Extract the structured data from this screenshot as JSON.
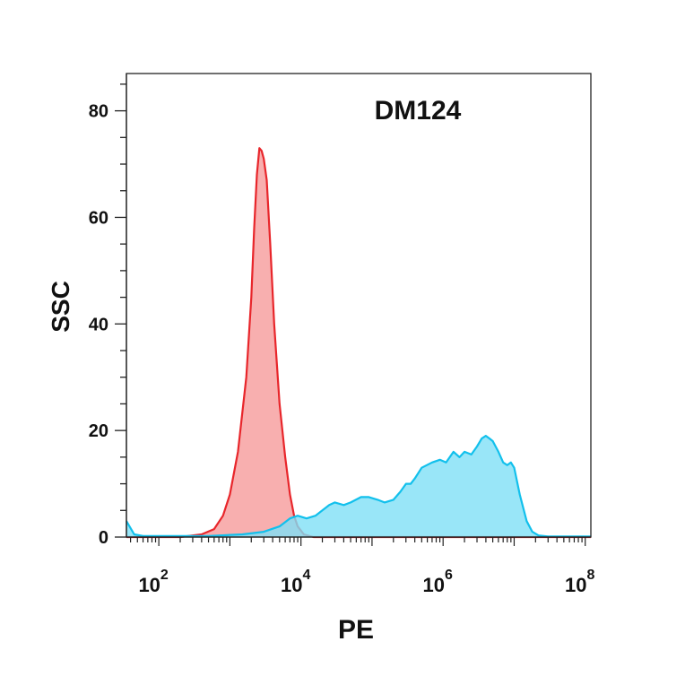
{
  "chart_data": {
    "type": "area",
    "title": "DM124",
    "xlabel": "PE",
    "ylabel": "SSC",
    "x_scale": "log10",
    "xlim": [
      35,
      120000000
    ],
    "ylim": [
      0,
      87
    ],
    "x_ticks": [
      {
        "base": "10",
        "exp": "2",
        "value": 100
      },
      {
        "base": "10",
        "exp": "4",
        "value": 10000
      },
      {
        "base": "10",
        "exp": "6",
        "value": 1000000
      },
      {
        "base": "10",
        "exp": "8",
        "value": 100000000
      }
    ],
    "y_ticks": [
      {
        "label": "0",
        "value": 0
      },
      {
        "label": "20",
        "value": 20
      },
      {
        "label": "40",
        "value": 40
      },
      {
        "label": "60",
        "value": 60
      },
      {
        "label": "80",
        "value": 80
      }
    ],
    "grid": false,
    "legend": "none",
    "series": [
      {
        "color_fill": "#f7a6a6",
        "color_line": "#e8262b",
        "points": [
          [
            35,
            0
          ],
          [
            200,
            0
          ],
          [
            400,
            0.5
          ],
          [
            600,
            1.5
          ],
          [
            800,
            4
          ],
          [
            1000,
            8
          ],
          [
            1300,
            16
          ],
          [
            1700,
            30
          ],
          [
            2000,
            45
          ],
          [
            2200,
            58
          ],
          [
            2400,
            68
          ],
          [
            2600,
            73
          ],
          [
            2800,
            72.5
          ],
          [
            3000,
            71
          ],
          [
            3300,
            67
          ],
          [
            3700,
            55
          ],
          [
            4200,
            40
          ],
          [
            5000,
            25
          ],
          [
            6000,
            15
          ],
          [
            7000,
            8
          ],
          [
            8000,
            4
          ],
          [
            9000,
            2
          ],
          [
            11000,
            0.5
          ],
          [
            15000,
            0
          ],
          [
            120000000,
            0
          ]
        ]
      },
      {
        "color_fill": "#7fe0f6",
        "color_line": "#12c0ec",
        "points": [
          [
            35,
            3
          ],
          [
            45,
            0.5
          ],
          [
            60,
            0.2
          ],
          [
            500,
            0.2
          ],
          [
            1500,
            0.5
          ],
          [
            3000,
            1
          ],
          [
            5000,
            2
          ],
          [
            7000,
            3.5
          ],
          [
            9000,
            4
          ],
          [
            12000,
            3.5
          ],
          [
            16000,
            4
          ],
          [
            20000,
            5
          ],
          [
            25000,
            6
          ],
          [
            30000,
            6.5
          ],
          [
            40000,
            6
          ],
          [
            50000,
            6.5
          ],
          [
            70000,
            7.5
          ],
          [
            90000,
            7.5
          ],
          [
            120000,
            7
          ],
          [
            150000,
            6.5
          ],
          [
            200000,
            7
          ],
          [
            250000,
            8.5
          ],
          [
            300000,
            10
          ],
          [
            350000,
            10
          ],
          [
            400000,
            11
          ],
          [
            500000,
            13
          ],
          [
            700000,
            14
          ],
          [
            900000,
            14.5
          ],
          [
            1100000,
            14
          ],
          [
            1400000,
            16
          ],
          [
            1700000,
            15
          ],
          [
            2000000,
            16
          ],
          [
            2500000,
            15.5
          ],
          [
            3000000,
            17
          ],
          [
            3500000,
            18.5
          ],
          [
            4000000,
            19
          ],
          [
            4500000,
            18.5
          ],
          [
            5000000,
            18
          ],
          [
            6000000,
            16
          ],
          [
            7000000,
            14
          ],
          [
            8000000,
            13.5
          ],
          [
            9000000,
            14
          ],
          [
            10000000,
            13
          ],
          [
            12000000,
            8
          ],
          [
            15000000,
            3
          ],
          [
            18000000,
            1
          ],
          [
            22000000,
            0.3
          ],
          [
            30000000,
            0.1
          ],
          [
            120000000,
            0.1
          ]
        ]
      }
    ]
  }
}
